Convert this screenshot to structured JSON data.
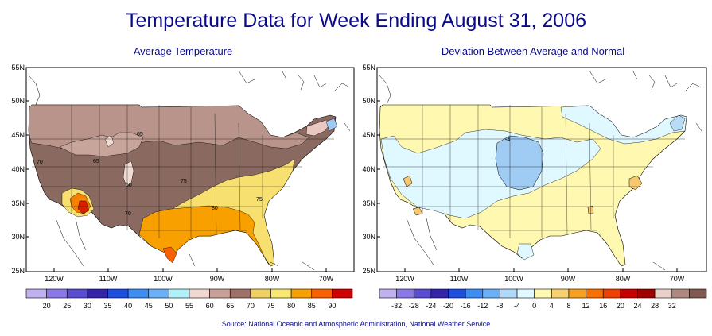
{
  "title": "Temperature Data for Week Ending August 31, 2006",
  "source": "Source:  National Oceanic and Atmospheric Administration, National Weather Service",
  "left_map": {
    "title": "Average Temperature",
    "lat_labels": [
      "55N",
      "50N",
      "45N",
      "40N",
      "35N",
      "30N",
      "25N"
    ],
    "lon_labels": [
      "120W",
      "110W",
      "100W",
      "90W",
      "80W",
      "70W"
    ],
    "contour_labels": [
      "65",
      "65",
      "70",
      "60",
      "75",
      "70",
      "80",
      "75"
    ],
    "legend": {
      "labels": [
        "20",
        "25",
        "30",
        "35",
        "40",
        "45",
        "50",
        "55",
        "60",
        "65",
        "70",
        "75",
        "80",
        "85",
        "90"
      ],
      "colors": [
        "#c0b0f0",
        "#8a78e8",
        "#5a4cd0",
        "#3424a8",
        "#1c4ee0",
        "#3c8ef2",
        "#6ab0f6",
        "#b0f0f8",
        "#f0d8d0",
        "#c8a098",
        "#a07068",
        "#f0d060",
        "#f8e870",
        "#f8a000",
        "#f86000",
        "#d00000"
      ]
    }
  },
  "right_map": {
    "title": "Deviation Between Average and Normal",
    "lat_labels": [
      "55N",
      "50N",
      "45N",
      "40N",
      "35N",
      "30N",
      "25N"
    ],
    "lon_labels": [
      "120W",
      "110W",
      "100W",
      "90W",
      "80W",
      "70W"
    ],
    "contour_labels": [
      "-4"
    ],
    "legend": {
      "labels": [
        "-32",
        "-28",
        "-24",
        "-20",
        "-16",
        "-12",
        "-8",
        "-4",
        "0",
        "4",
        "8",
        "12",
        "16",
        "20",
        "24",
        "28",
        "32"
      ],
      "colors": [
        "#c0b0f0",
        "#8a78e8",
        "#5a4cd0",
        "#3424a8",
        "#1c4ee0",
        "#3c8ef2",
        "#6ab0f6",
        "#b0d8f8",
        "#e0f8ff",
        "#fff8b0",
        "#f8d070",
        "#f8a020",
        "#f87000",
        "#f04000",
        "#c80000",
        "#a00000",
        "#e8d0c8",
        "#b08880",
        "#805850"
      ]
    }
  }
}
